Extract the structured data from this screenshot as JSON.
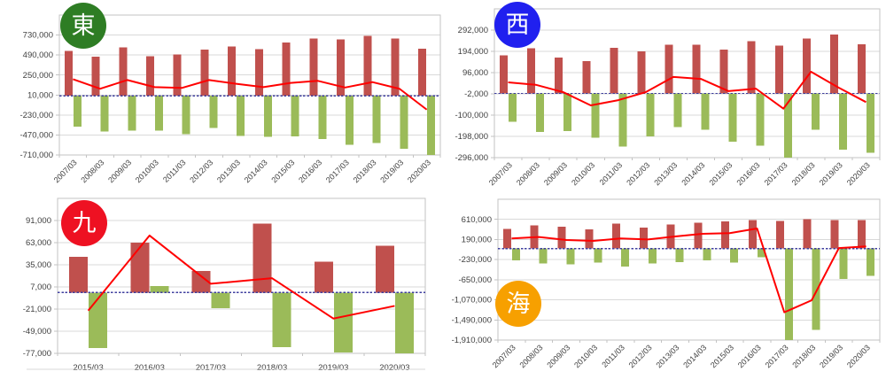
{
  "page": {
    "background": "#ffffff"
  },
  "colors": {
    "bar_positive": "#c0504d",
    "bar_negative": "#9bbb59",
    "trend_line": "#ff0000",
    "zero_dash_line": "#3f3f9f",
    "gridline": "#d9d9d9",
    "axis_border": "#c3c3c3",
    "tick_label": "#404040"
  },
  "chart_data": [
    {
      "id": "east",
      "type": "bar",
      "badge": {
        "label": "東",
        "color": "#2e7d24",
        "text_color": "#ffffff"
      },
      "categories": [
        "2007/03",
        "2008/03",
        "2009/03",
        "2010/03",
        "2011/03",
        "2012/03",
        "2013/03",
        "2014/03",
        "2015/03",
        "2016/03",
        "2017/03",
        "2018/03",
        "2019/03",
        "2020/03"
      ],
      "series": [
        {
          "name": "positive-bars",
          "type": "bar",
          "color_key": "bar_positive",
          "values": [
            540000,
            470000,
            580000,
            475000,
            495000,
            555000,
            590000,
            560000,
            640000,
            690000,
            675000,
            720000,
            690000,
            565000
          ]
        },
        {
          "name": "negative-bars",
          "type": "bar",
          "color_key": "bar_negative",
          "values": [
            -370000,
            -430000,
            -420000,
            -415000,
            -460000,
            -385000,
            -480000,
            -490000,
            -487000,
            -520000,
            -590000,
            -565000,
            -635000,
            -710000
          ]
        },
        {
          "name": "trend-line",
          "type": "line",
          "color_key": "trend_line",
          "values": [
            200000,
            85000,
            190000,
            105000,
            95000,
            190000,
            145000,
            105000,
            155000,
            180000,
            100000,
            165000,
            85000,
            -165000
          ]
        }
      ],
      "ylim": [
        -710000,
        970000
      ],
      "y_ticks": [
        730000,
        490000,
        250000,
        10000,
        -230000,
        -470000,
        -710000
      ],
      "zero_line_dashed": true,
      "x_labels_rotated": true,
      "legend": "none",
      "grid": true
    },
    {
      "id": "west",
      "type": "bar",
      "badge": {
        "label": "西",
        "color": "#2020ef",
        "text_color": "#ffffff"
      },
      "categories": [
        "2007/03",
        "2008/03",
        "2009/03",
        "2010/03",
        "2011/03",
        "2012/03",
        "2013/03",
        "2014/03",
        "2015/03",
        "2016/03",
        "2017/03",
        "2018/03",
        "2019/03",
        "2020/03"
      ],
      "series": [
        {
          "name": "positive-bars",
          "type": "bar",
          "color_key": "bar_positive",
          "values": [
            176000,
            208000,
            165000,
            149000,
            210000,
            194000,
            225000,
            224000,
            203000,
            240000,
            221000,
            254000,
            271000,
            227000
          ]
        },
        {
          "name": "negative-bars",
          "type": "bar",
          "color_key": "bar_negative",
          "values": [
            -130000,
            -178000,
            -174000,
            -205000,
            -244000,
            -197000,
            -156000,
            -167000,
            -222000,
            -240000,
            -296000,
            -168000,
            -259000,
            -274000
          ]
        },
        {
          "name": "trend-line",
          "type": "line",
          "color_key": "trend_line",
          "values": [
            51000,
            40000,
            6000,
            -55000,
            -31000,
            6000,
            76000,
            67000,
            11000,
            22000,
            -70000,
            100000,
            27000,
            -40000
          ]
        }
      ],
      "ylim": [
        -296000,
        390000
      ],
      "y_ticks": [
        292000,
        194000,
        96000,
        -2000,
        -100000,
        -198000,
        -296000
      ],
      "zero_line_dashed": true,
      "x_labels_rotated": true,
      "legend": "none",
      "grid": true
    },
    {
      "id": "kyushu",
      "type": "bar",
      "badge": {
        "label": "九",
        "color": "#ee1122",
        "text_color": "#ffffff"
      },
      "categories": [
        "2015/03",
        "2016/03",
        "2017/03",
        "2018/03",
        "2019/03",
        "2020/03"
      ],
      "series": [
        {
          "name": "positive-bars",
          "type": "bar",
          "color_key": "bar_positive",
          "values": [
            45000,
            63000,
            27000,
            87000,
            39000,
            59000
          ]
        },
        {
          "name": "negative-bars",
          "type": "bar",
          "color_key": "bar_negative",
          "values": [
            -70000,
            8000,
            -20000,
            -69000,
            -76000,
            -78000
          ]
        },
        {
          "name": "trend-line",
          "type": "line",
          "color_key": "trend_line",
          "values": [
            -23000,
            72000,
            11000,
            18000,
            -33000,
            -17000
          ]
        }
      ],
      "ylim": [
        -77000,
        119000
      ],
      "y_ticks": [
        91000,
        63000,
        35000,
        7000,
        -21000,
        -49000,
        -77000
      ],
      "zero_line_dashed": true,
      "x_labels_rotated": false,
      "legend": "none",
      "grid": true
    },
    {
      "id": "sea",
      "type": "bar",
      "badge": {
        "label": "海",
        "color": "#f7a000",
        "text_color": "#ffffff"
      },
      "categories": [
        "2007/03",
        "2008/03",
        "2009/03",
        "2010/03",
        "2011/03",
        "2012/03",
        "2013/03",
        "2014/03",
        "2015/03",
        "2016/03",
        "2017/03",
        "2018/03",
        "2019/03",
        "2020/03"
      ],
      "series": [
        {
          "name": "positive-bars",
          "type": "bar",
          "color_key": "bar_positive",
          "values": [
            414000,
            488000,
            457000,
            402000,
            518000,
            438000,
            500000,
            537000,
            568000,
            598000,
            580000,
            610000,
            592000,
            592000
          ]
        },
        {
          "name": "negative-bars",
          "type": "bar",
          "color_key": "bar_negative",
          "values": [
            -244000,
            -306000,
            -330000,
            -293000,
            -373000,
            -306000,
            -281000,
            -244000,
            -293000,
            -185000,
            -1910000,
            -1700000,
            -630000,
            -565000
          ]
        },
        {
          "name": "trend-line",
          "type": "line",
          "color_key": "trend_line",
          "values": [
            211000,
            242000,
            180000,
            162000,
            211000,
            192000,
            254000,
            309000,
            322000,
            420000,
            -1330000,
            -1080000,
            10000,
            45000
          ]
        }
      ],
      "ylim": [
        -1910000,
        1030000
      ],
      "y_ticks": [
        610000,
        190000,
        -230000,
        -650000,
        -1070000,
        -1490000,
        -1910000
      ],
      "zero_line_dashed": true,
      "x_labels_rotated": true,
      "legend": "none",
      "grid": true
    }
  ]
}
